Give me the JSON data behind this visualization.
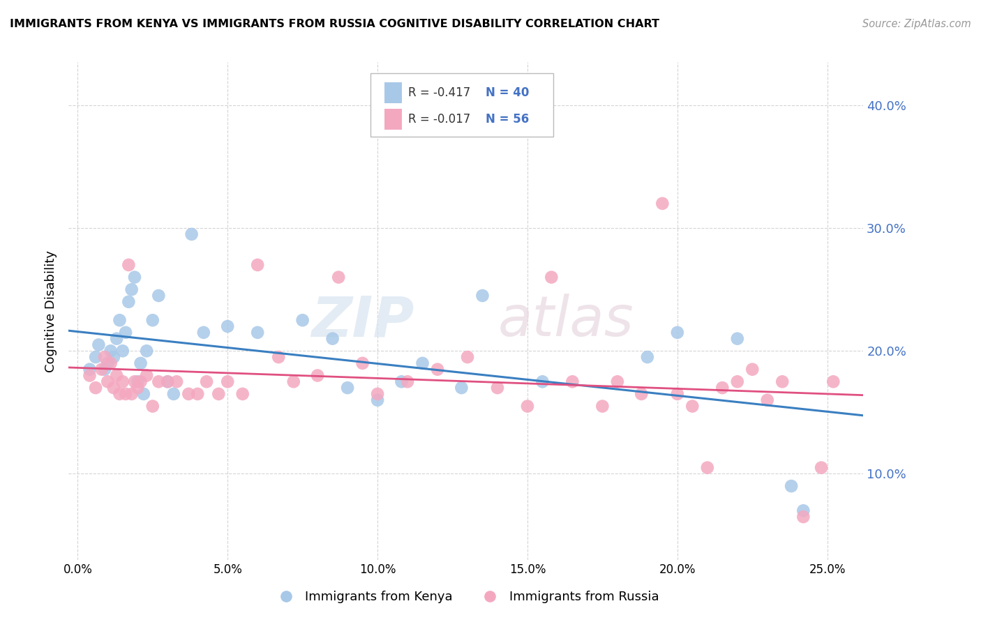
{
  "title": "IMMIGRANTS FROM KENYA VS IMMIGRANTS FROM RUSSIA COGNITIVE DISABILITY CORRELATION CHART",
  "source": "Source: ZipAtlas.com",
  "xlabel_ticks": [
    "0.0%",
    "5.0%",
    "10.0%",
    "15.0%",
    "20.0%",
    "25.0%"
  ],
  "xlabel_vals": [
    0.0,
    0.05,
    0.1,
    0.15,
    0.2,
    0.25
  ],
  "ylabel_ticks": [
    "10.0%",
    "20.0%",
    "30.0%",
    "40.0%"
  ],
  "ylabel_vals": [
    0.1,
    0.2,
    0.3,
    0.4
  ],
  "xlim": [
    -0.003,
    0.262
  ],
  "ylim": [
    0.03,
    0.435
  ],
  "ylabel": "Cognitive Disability",
  "kenya_R": "-0.417",
  "kenya_N": "40",
  "russia_R": "-0.017",
  "russia_N": "56",
  "kenya_color": "#a8c8e8",
  "russia_color": "#f4a8c0",
  "kenya_line_color": "#3a7fc1",
  "russia_line_color": "#e05080",
  "kenya_points_x": [
    0.004,
    0.006,
    0.007,
    0.009,
    0.01,
    0.011,
    0.012,
    0.013,
    0.014,
    0.015,
    0.016,
    0.017,
    0.018,
    0.019,
    0.02,
    0.021,
    0.022,
    0.023,
    0.025,
    0.027,
    0.03,
    0.032,
    0.038,
    0.042,
    0.05,
    0.06,
    0.075,
    0.085,
    0.09,
    0.1,
    0.108,
    0.115,
    0.128,
    0.135,
    0.155,
    0.19,
    0.2,
    0.22,
    0.238,
    0.242
  ],
  "kenya_points_y": [
    0.185,
    0.195,
    0.205,
    0.185,
    0.19,
    0.2,
    0.195,
    0.21,
    0.225,
    0.2,
    0.215,
    0.24,
    0.25,
    0.26,
    0.175,
    0.19,
    0.165,
    0.2,
    0.225,
    0.245,
    0.175,
    0.165,
    0.295,
    0.215,
    0.22,
    0.215,
    0.225,
    0.21,
    0.17,
    0.16,
    0.175,
    0.19,
    0.17,
    0.245,
    0.175,
    0.195,
    0.215,
    0.21,
    0.09,
    0.07
  ],
  "russia_points_x": [
    0.004,
    0.006,
    0.008,
    0.009,
    0.01,
    0.011,
    0.012,
    0.013,
    0.014,
    0.015,
    0.016,
    0.017,
    0.018,
    0.019,
    0.02,
    0.021,
    0.023,
    0.025,
    0.027,
    0.03,
    0.033,
    0.037,
    0.04,
    0.043,
    0.047,
    0.05,
    0.055,
    0.06,
    0.067,
    0.072,
    0.08,
    0.087,
    0.095,
    0.1,
    0.11,
    0.12,
    0.13,
    0.14,
    0.15,
    0.158,
    0.165,
    0.175,
    0.18,
    0.188,
    0.195,
    0.2,
    0.205,
    0.21,
    0.215,
    0.22,
    0.225,
    0.23,
    0.235,
    0.242,
    0.248,
    0.252
  ],
  "russia_points_y": [
    0.18,
    0.17,
    0.185,
    0.195,
    0.175,
    0.19,
    0.17,
    0.18,
    0.165,
    0.175,
    0.165,
    0.27,
    0.165,
    0.175,
    0.17,
    0.175,
    0.18,
    0.155,
    0.175,
    0.175,
    0.175,
    0.165,
    0.165,
    0.175,
    0.165,
    0.175,
    0.165,
    0.27,
    0.195,
    0.175,
    0.18,
    0.26,
    0.19,
    0.165,
    0.175,
    0.185,
    0.195,
    0.17,
    0.155,
    0.26,
    0.175,
    0.155,
    0.175,
    0.165,
    0.32,
    0.165,
    0.155,
    0.105,
    0.17,
    0.175,
    0.185,
    0.16,
    0.175,
    0.065,
    0.105,
    0.175
  ],
  "watermark_zip": "ZIP",
  "watermark_atlas": "atlas",
  "background_color": "#ffffff",
  "grid_color": "#d0d0d0",
  "legend_text_color": "#333333",
  "axis_label_color": "#4472c4"
}
